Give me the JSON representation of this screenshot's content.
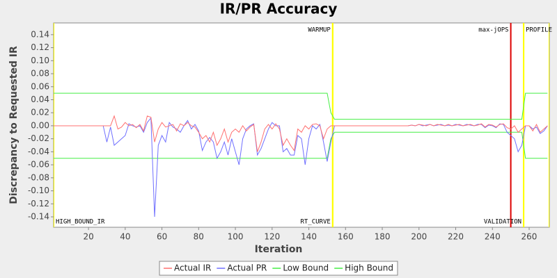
{
  "chart_data": {
    "type": "line",
    "title": "IR/PR Accuracy",
    "x_label": "Iteration",
    "y_label": "Discrepancy to Requested IR",
    "xlim": [
      1,
      271
    ],
    "ylim": [
      -0.156,
      0.158
    ],
    "xticks": [
      20,
      40,
      60,
      80,
      100,
      120,
      140,
      160,
      180,
      200,
      220,
      240,
      260
    ],
    "yticks": [
      {
        "value": -0.14,
        "label": "-0.14"
      },
      {
        "value": -0.12,
        "label": "-0.12"
      },
      {
        "value": -0.1,
        "label": "-0.10"
      },
      {
        "value": -0.08,
        "label": "-0.08"
      },
      {
        "value": -0.06,
        "label": "-0.06"
      },
      {
        "value": -0.04,
        "label": "-0.04"
      },
      {
        "value": -0.02,
        "label": "-0.02"
      },
      {
        "value": 0,
        "label": "0.00"
      },
      {
        "value": 0.02,
        "label": "0.02"
      },
      {
        "value": 0.04,
        "label": "0.04"
      },
      {
        "value": 0.06,
        "label": "0.06"
      },
      {
        "value": 0.08,
        "label": "0.08"
      },
      {
        "value": 0.1,
        "label": "0.10"
      },
      {
        "value": 0.12,
        "label": "0.12"
      },
      {
        "value": 0.14,
        "label": "0.14"
      }
    ],
    "grid": false,
    "legend": "bottom",
    "x": [
      1,
      28,
      30,
      32,
      34,
      36,
      38,
      40,
      42,
      44,
      46,
      48,
      50,
      52,
      54,
      56,
      58,
      60,
      62,
      64,
      66,
      68,
      70,
      72,
      74,
      76,
      78,
      80,
      82,
      84,
      86,
      88,
      90,
      92,
      94,
      96,
      98,
      100,
      102,
      104,
      106,
      108,
      110,
      112,
      114,
      116,
      118,
      120,
      122,
      124,
      126,
      128,
      130,
      132,
      134,
      136,
      138,
      140,
      142,
      144,
      146,
      148,
      150,
      152,
      154,
      156,
      158,
      160,
      162,
      164,
      166,
      168,
      170,
      172,
      174,
      176,
      178,
      180,
      182,
      184,
      186,
      188,
      190,
      192,
      194,
      196,
      198,
      200,
      202,
      204,
      206,
      208,
      210,
      212,
      214,
      216,
      218,
      220,
      222,
      224,
      226,
      228,
      230,
      232,
      234,
      236,
      238,
      240,
      242,
      244,
      246,
      248,
      250,
      252,
      254,
      256,
      258,
      260,
      262,
      264,
      266,
      268,
      270
    ],
    "series": [
      {
        "name": "Actual IR",
        "color": "#ff7070",
        "values": [
          0,
          0,
          0,
          0,
          0.015,
          -0.005,
          -0.002,
          0.005,
          0,
          0.002,
          -0.003,
          0.002,
          -0.008,
          0.015,
          0.013,
          -0.025,
          -0.005,
          0.005,
          -0.002,
          0,
          0.002,
          -0.008,
          0.003,
          0,
          0.005,
          0,
          -0.002,
          -0.01,
          -0.02,
          -0.015,
          -0.025,
          -0.01,
          -0.03,
          -0.02,
          -0.005,
          -0.025,
          -0.01,
          -0.005,
          -0.01,
          0,
          -0.008,
          -0.002,
          0.002,
          -0.04,
          -0.025,
          -0.005,
          0.002,
          -0.005,
          0.003,
          -0.005,
          -0.03,
          -0.02,
          -0.03,
          -0.038,
          -0.005,
          -0.01,
          0,
          -0.005,
          0.002,
          0.003,
          0,
          -0.02,
          -0.005,
          0,
          0,
          0,
          0,
          0,
          0,
          0,
          0,
          0,
          0,
          0,
          0,
          0,
          0,
          0,
          0,
          0,
          0,
          0,
          0,
          0,
          0,
          0.001,
          0,
          0.002,
          0.001,
          0,
          0.002,
          0,
          0.002,
          0.001,
          0,
          0.002,
          0,
          0.001,
          0.002,
          0,
          0.001,
          0.002,
          0,
          0.001,
          0.003,
          -0.002,
          0.002,
          0.001,
          -0.002,
          0.002,
          0.003,
          -0.003,
          -0.005,
          0,
          -0.01,
          -0.005,
          0,
          0,
          -0.008,
          0.002,
          -0.01,
          -0.005,
          0
        ]
      },
      {
        "name": "Actual PR",
        "color": "#6f6fff",
        "values": [
          0,
          0,
          -0.025,
          -0.002,
          -0.03,
          -0.025,
          -0.02,
          -0.015,
          0.003,
          0,
          -0.002,
          0,
          -0.01,
          0.005,
          0.012,
          -0.14,
          -0.03,
          -0.015,
          -0.025,
          0.005,
          -0.002,
          -0.005,
          -0.01,
          0,
          0.008,
          -0.005,
          0.002,
          -0.008,
          -0.038,
          -0.025,
          -0.018,
          -0.025,
          -0.05,
          -0.04,
          -0.025,
          -0.045,
          -0.02,
          -0.04,
          -0.06,
          -0.02,
          -0.005,
          0,
          0.003,
          -0.045,
          -0.035,
          -0.02,
          -0.005,
          0.005,
          0,
          0,
          -0.04,
          -0.035,
          -0.045,
          -0.045,
          -0.015,
          -0.02,
          -0.06,
          -0.02,
          0,
          -0.005,
          0.002,
          -0.025,
          -0.055,
          -0.025,
          0,
          0,
          0,
          0,
          0,
          0,
          0,
          0,
          0,
          0,
          0,
          0,
          0,
          0,
          0,
          0,
          0,
          0,
          0,
          0,
          0,
          0.001,
          0,
          0.002,
          0,
          0.001,
          0.002,
          0,
          0.001,
          0.002,
          0,
          0.001,
          0,
          0.002,
          0.001,
          0,
          0.002,
          0.001,
          0,
          0.002,
          0.002,
          -0.003,
          0.001,
          0,
          -0.003,
          0.003,
          0.002,
          -0.01,
          -0.015,
          -0.02,
          -0.04,
          -0.03,
          0,
          0,
          -0.005,
          -0.002,
          -0.012,
          -0.008,
          0
        ]
      },
      {
        "name": "Low Bound",
        "color": "#44ee44",
        "values": [
          -0.05,
          -0.05,
          -0.05,
          -0.05,
          -0.05,
          -0.05,
          -0.05,
          -0.05,
          -0.05,
          -0.05,
          -0.05,
          -0.05,
          -0.05,
          -0.05,
          -0.05,
          -0.05,
          -0.05,
          -0.05,
          -0.05,
          -0.05,
          -0.05,
          -0.05,
          -0.05,
          -0.05,
          -0.05,
          -0.05,
          -0.05,
          -0.05,
          -0.05,
          -0.05,
          -0.05,
          -0.05,
          -0.05,
          -0.05,
          -0.05,
          -0.05,
          -0.05,
          -0.05,
          -0.05,
          -0.05,
          -0.05,
          -0.05,
          -0.05,
          -0.05,
          -0.05,
          -0.05,
          -0.05,
          -0.05,
          -0.05,
          -0.05,
          -0.05,
          -0.05,
          -0.05,
          -0.05,
          -0.05,
          -0.05,
          -0.05,
          -0.05,
          -0.05,
          -0.05,
          -0.05,
          -0.05,
          -0.05,
          -0.02,
          -0.01,
          -0.01,
          -0.01,
          -0.01,
          -0.01,
          -0.01,
          -0.01,
          -0.01,
          -0.01,
          -0.01,
          -0.01,
          -0.01,
          -0.01,
          -0.01,
          -0.01,
          -0.01,
          -0.01,
          -0.01,
          -0.01,
          -0.01,
          -0.01,
          -0.01,
          -0.01,
          -0.01,
          -0.01,
          -0.01,
          -0.01,
          -0.01,
          -0.01,
          -0.01,
          -0.01,
          -0.01,
          -0.01,
          -0.01,
          -0.01,
          -0.01,
          -0.01,
          -0.01,
          -0.01,
          -0.01,
          -0.01,
          -0.01,
          -0.01,
          -0.01,
          -0.01,
          -0.01,
          -0.01,
          -0.01,
          -0.01,
          -0.01,
          -0.01,
          -0.01,
          -0.05,
          -0.05,
          -0.05,
          -0.05,
          -0.05,
          -0.05,
          -0.05
        ]
      },
      {
        "name": "High Bound",
        "color": "#44ee44",
        "values": [
          0.05,
          0.05,
          0.05,
          0.05,
          0.05,
          0.05,
          0.05,
          0.05,
          0.05,
          0.05,
          0.05,
          0.05,
          0.05,
          0.05,
          0.05,
          0.05,
          0.05,
          0.05,
          0.05,
          0.05,
          0.05,
          0.05,
          0.05,
          0.05,
          0.05,
          0.05,
          0.05,
          0.05,
          0.05,
          0.05,
          0.05,
          0.05,
          0.05,
          0.05,
          0.05,
          0.05,
          0.05,
          0.05,
          0.05,
          0.05,
          0.05,
          0.05,
          0.05,
          0.05,
          0.05,
          0.05,
          0.05,
          0.05,
          0.05,
          0.05,
          0.05,
          0.05,
          0.05,
          0.05,
          0.05,
          0.05,
          0.05,
          0.05,
          0.05,
          0.05,
          0.05,
          0.05,
          0.05,
          0.02,
          0.01,
          0.01,
          0.01,
          0.01,
          0.01,
          0.01,
          0.01,
          0.01,
          0.01,
          0.01,
          0.01,
          0.01,
          0.01,
          0.01,
          0.01,
          0.01,
          0.01,
          0.01,
          0.01,
          0.01,
          0.01,
          0.01,
          0.01,
          0.01,
          0.01,
          0.01,
          0.01,
          0.01,
          0.01,
          0.01,
          0.01,
          0.01,
          0.01,
          0.01,
          0.01,
          0.01,
          0.01,
          0.01,
          0.01,
          0.01,
          0.01,
          0.01,
          0.01,
          0.01,
          0.01,
          0.01,
          0.01,
          0.01,
          0.01,
          0.01,
          0.01,
          0.01,
          0.05,
          0.05,
          0.05,
          0.05,
          0.05,
          0.05,
          0.05
        ]
      }
    ],
    "markers": [
      {
        "value": 1,
        "label": "HIGH_BOUND_IR",
        "color": "#ffff00",
        "anchor": "bottom-right"
      },
      {
        "value": 153,
        "label": "WARMUP",
        "color": "#ffff00",
        "anchor": "top-left"
      },
      {
        "value": 153,
        "label": "RT_CURVE",
        "color": "#ffff00",
        "anchor": "bottom-left"
      },
      {
        "value": 250,
        "label": "max-jOPS",
        "color": "#dd0000",
        "anchor": "top-left"
      },
      {
        "value": 257,
        "label": "VALIDATION",
        "color": "#ffff00",
        "anchor": "bottom-left"
      },
      {
        "value": 257,
        "label": "PROFILE",
        "color": "#ffff00",
        "anchor": "top-right"
      },
      {
        "value": 271,
        "color": "#ffff00"
      }
    ]
  }
}
